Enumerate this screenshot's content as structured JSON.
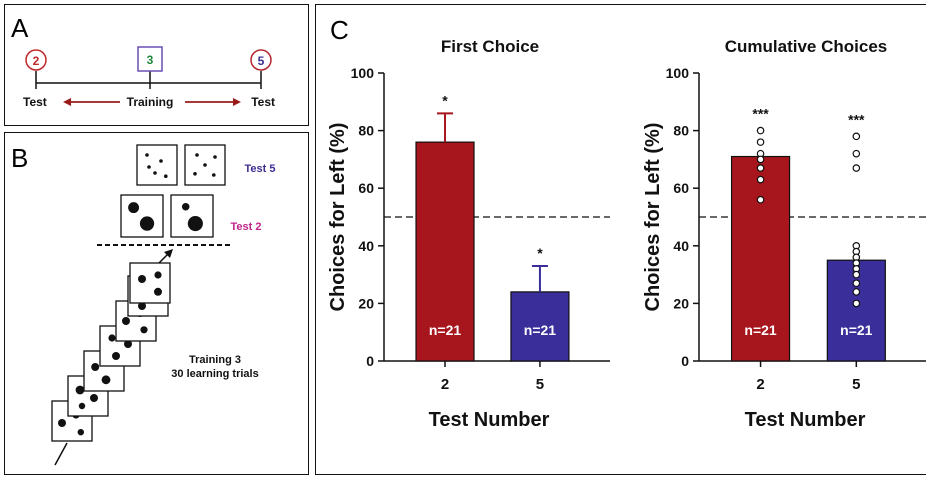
{
  "panels": {
    "a": {
      "letter": "A",
      "circle_left": "2",
      "square_mid": "3",
      "circle_right": "5",
      "label_left": "Test",
      "label_mid": "Training",
      "label_right": "Test",
      "colors": {
        "circle_left": "#c0282a",
        "square_mid": "#6a4fb3",
        "square_text": "#1f8a3a",
        "circle_right": "#b3262f",
        "circle_right_text": "#3a2f8f",
        "arrows": "#9b1b1b"
      }
    },
    "b": {
      "letter": "B",
      "test5_label": "Test 5",
      "test2_label": "Test 2",
      "training_line1": "Training 3",
      "training_line2": "30 learning trials",
      "colors": {
        "test5": "#3d2f93",
        "test2": "#c0268a"
      }
    },
    "c": {
      "letter": "C"
    }
  },
  "chart_data": [
    {
      "type": "bar",
      "title": "First Choice",
      "xlabel": "Test Number",
      "ylabel": "Choices for Left (%)",
      "ylim": [
        0,
        100
      ],
      "yticks": [
        0,
        20,
        40,
        60,
        80,
        100
      ],
      "reference_line": 50,
      "categories": [
        "2",
        "5"
      ],
      "values": [
        76,
        24
      ],
      "error_upper": [
        86,
        33
      ],
      "significance": [
        "*",
        "*"
      ],
      "n_labels": [
        "n=21",
        "n=21"
      ],
      "colors": [
        "#a6161c",
        "#3a2f9a"
      ]
    },
    {
      "type": "bar",
      "title": "Cumulative Choices",
      "xlabel": "Test Number",
      "ylabel": "Choices for Left (%)",
      "ylim": [
        0,
        100
      ],
      "yticks": [
        0,
        20,
        40,
        60,
        80,
        100
      ],
      "reference_line": 50,
      "categories": [
        "2",
        "5"
      ],
      "values": [
        71,
        35
      ],
      "significance": [
        "***",
        "***"
      ],
      "n_labels": [
        "n=21",
        "n=21"
      ],
      "colors": [
        "#a6161c",
        "#3a2f9a"
      ],
      "points": [
        [
          80,
          76,
          72,
          70,
          67,
          63,
          56
        ],
        [
          78,
          72,
          67,
          40,
          38,
          36,
          34,
          32,
          30,
          27,
          24,
          20
        ]
      ]
    }
  ]
}
